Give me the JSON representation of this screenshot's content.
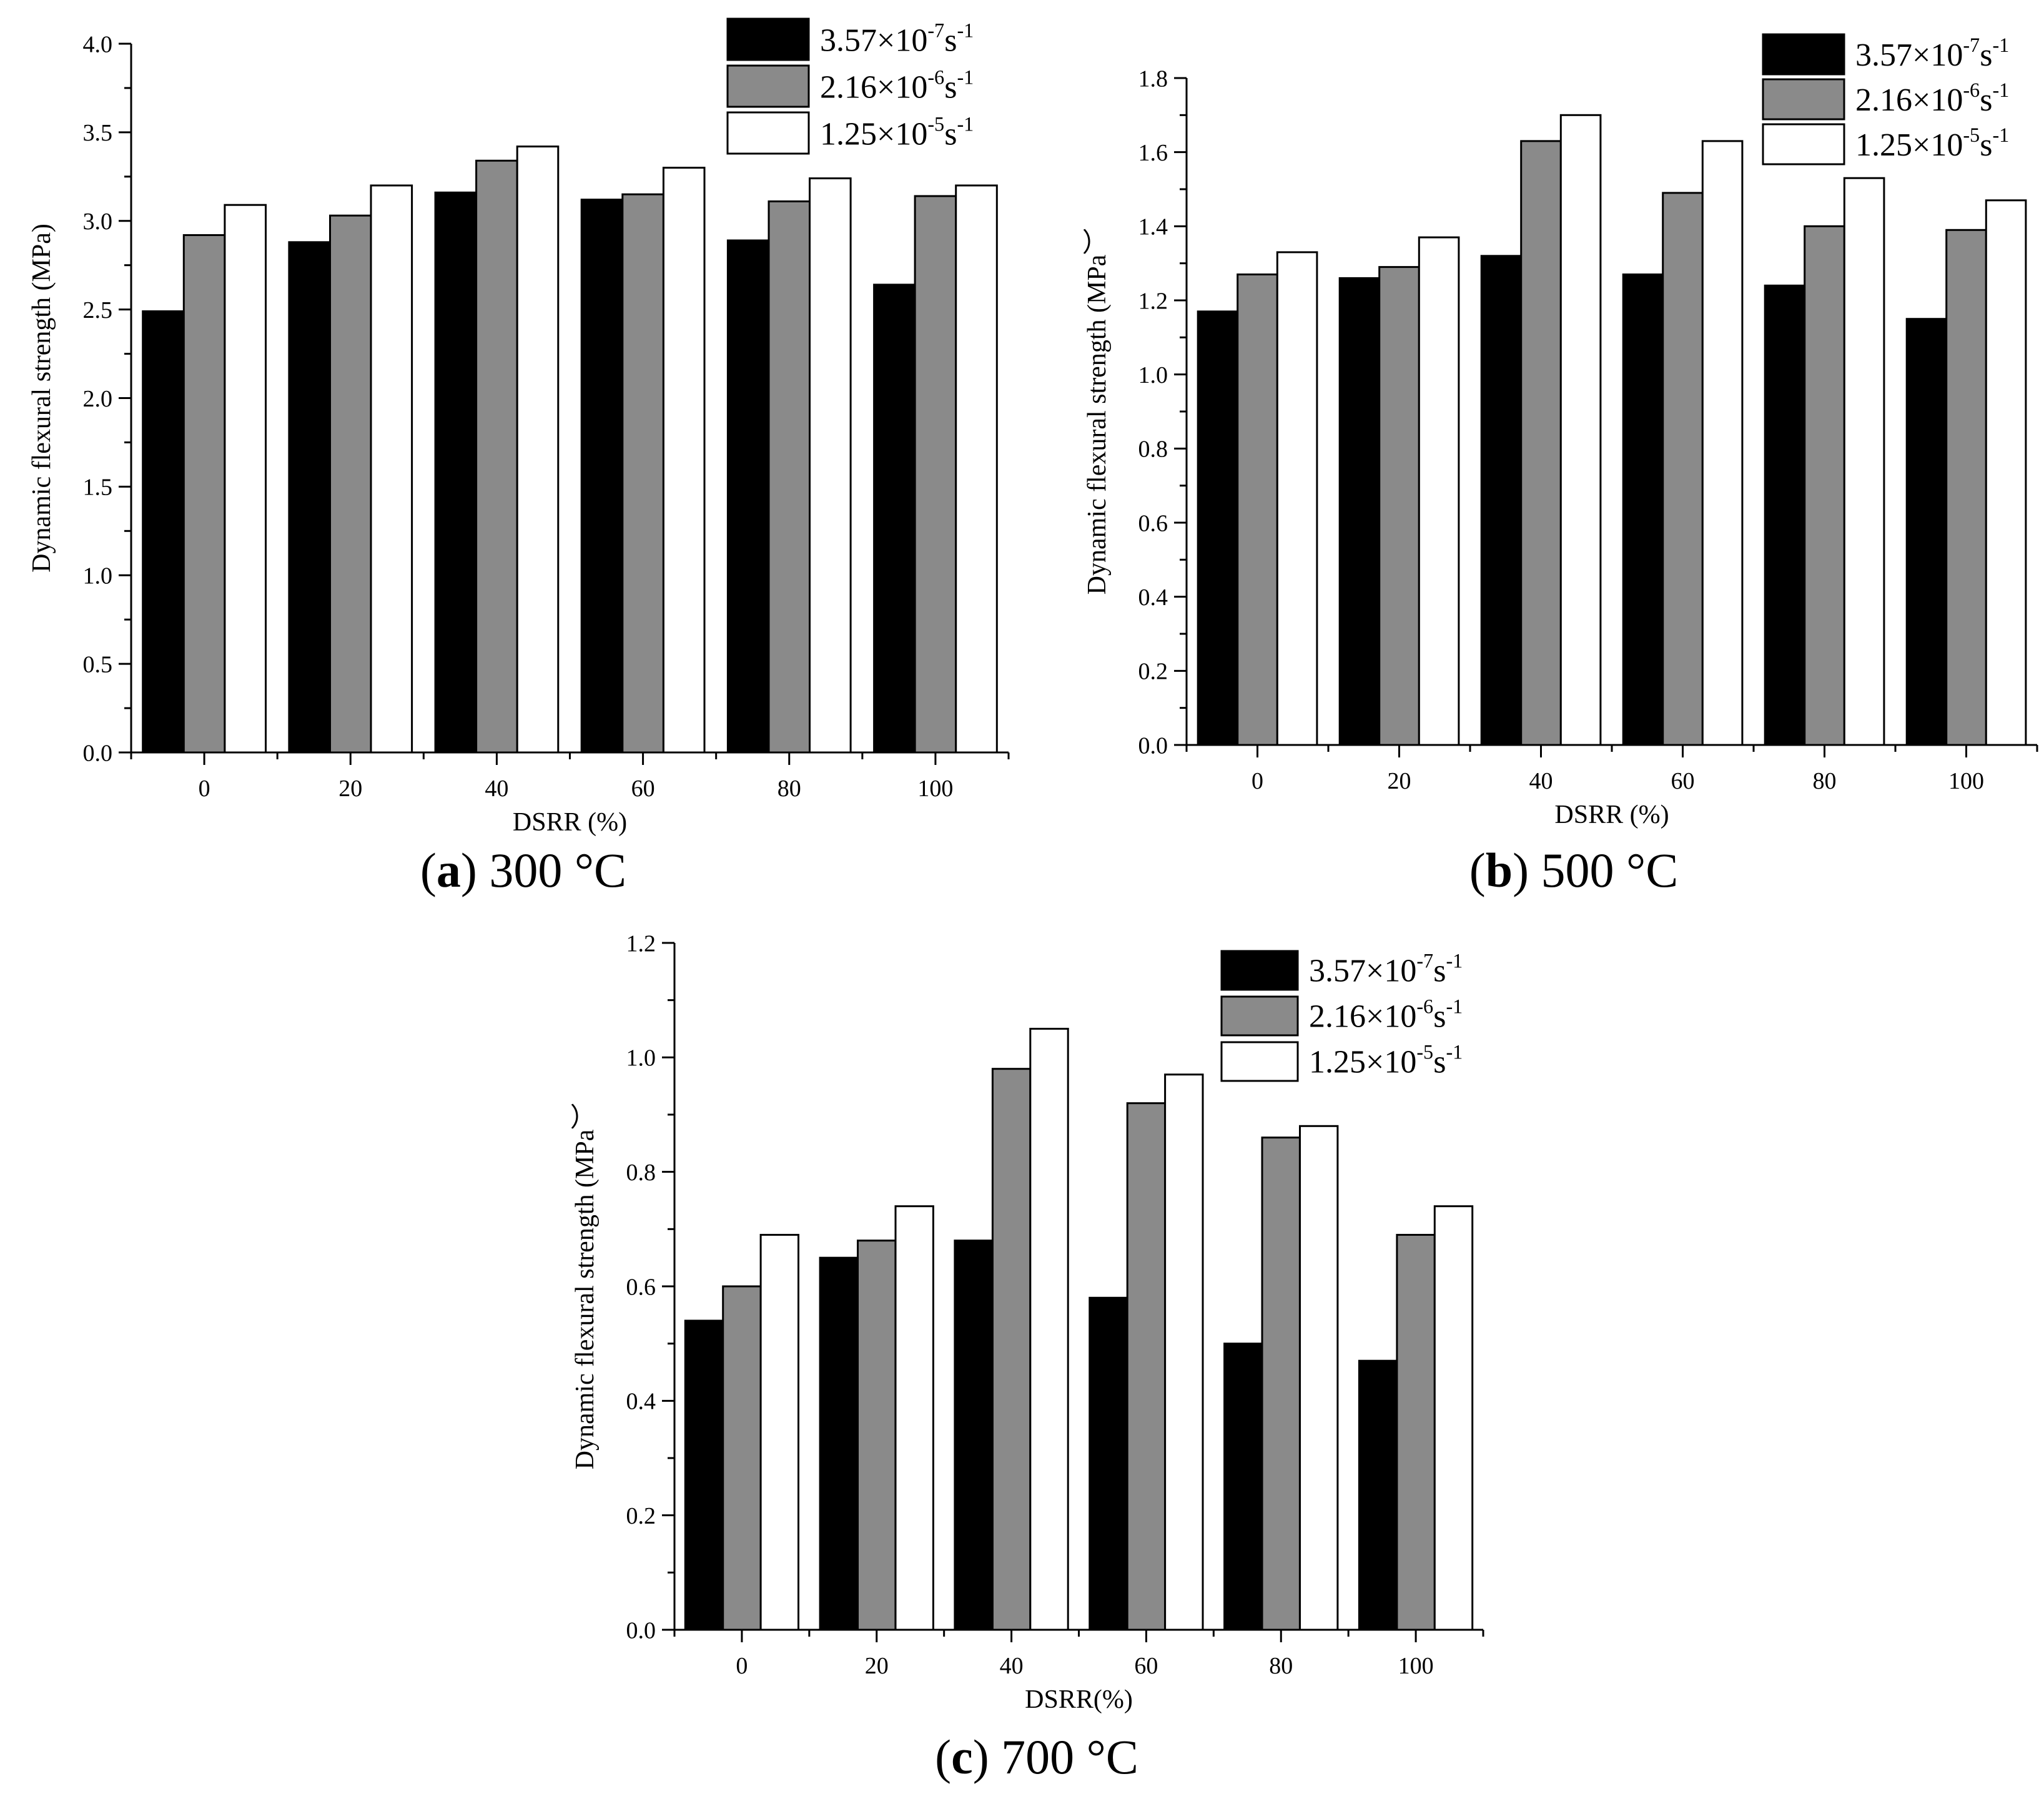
{
  "colors": {
    "series_0": "#000000",
    "series_1": "#8a8a8a",
    "series_2": "#ffffff",
    "axis": "#000000",
    "background": "#ffffff"
  },
  "chart_data": [
    {
      "type": "bar",
      "panel": "(a) 300 °C",
      "panel_letter": "a",
      "caption": "300 °C",
      "title": "",
      "xlabel": "DSRR (%)",
      "ylabel": "Dynamic flexural strength (MPa)",
      "categories": [
        "0",
        "20",
        "40",
        "60",
        "80",
        "100"
      ],
      "ylim": [
        0,
        4.0
      ],
      "yticks": [
        "0.0",
        "0.5",
        "1.0",
        "1.5",
        "2.0",
        "2.5",
        "3.0",
        "3.5",
        "4.0"
      ],
      "grid": false,
      "legend_position": "top-right",
      "series": [
        {
          "name": "3.57×10⁻⁷s⁻¹",
          "mantissa": "3.57×10",
          "exponent": "-7",
          "unit": "s",
          "unit_exponent": "-1",
          "values": [
            2.49,
            2.88,
            3.16,
            3.12,
            2.89,
            2.64
          ]
        },
        {
          "name": "2.16×10⁻⁶s⁻¹",
          "mantissa": "2.16×10",
          "exponent": "-6",
          "unit": "s",
          "unit_exponent": "-1",
          "values": [
            2.92,
            3.03,
            3.34,
            3.15,
            3.11,
            3.14
          ]
        },
        {
          "name": "1.25×10⁻⁵s⁻¹",
          "mantissa": "1.25×10",
          "exponent": "-5",
          "unit": "s",
          "unit_exponent": "-1",
          "values": [
            3.09,
            3.2,
            3.42,
            3.3,
            3.24,
            3.2
          ]
        }
      ]
    },
    {
      "type": "bar",
      "panel": "(b) 500 °C",
      "panel_letter": "b",
      "caption": "500 °C",
      "title": "",
      "xlabel": "DSRR (%)",
      "ylabel": "Dynamic flexural strength (MPa︶",
      "categories": [
        "0",
        "20",
        "40",
        "60",
        "80",
        "100"
      ],
      "ylim": [
        0,
        1.8
      ],
      "yticks": [
        "0.0",
        "0.2",
        "0.4",
        "0.6",
        "0.8",
        "1.0",
        "1.2",
        "1.4",
        "1.6",
        "1.8"
      ],
      "grid": false,
      "legend_position": "top-right",
      "series": [
        {
          "name": "3.57×10⁻⁷s⁻¹",
          "mantissa": "3.57×10",
          "exponent": "-7",
          "unit": "s",
          "unit_exponent": "-1",
          "values": [
            1.17,
            1.26,
            1.32,
            1.27,
            1.24,
            1.15
          ]
        },
        {
          "name": "2.16×10⁻⁶s⁻¹",
          "mantissa": "2.16×10",
          "exponent": "-6",
          "unit": "s",
          "unit_exponent": "-1",
          "values": [
            1.27,
            1.29,
            1.63,
            1.49,
            1.4,
            1.39
          ]
        },
        {
          "name": "1.25×10⁻⁵s⁻¹",
          "mantissa": "1.25×10",
          "exponent": "-5",
          "unit": "s",
          "unit_exponent": "-1",
          "values": [
            1.33,
            1.37,
            1.7,
            1.63,
            1.53,
            1.47
          ]
        }
      ]
    },
    {
      "type": "bar",
      "panel": "(c) 700 °C",
      "panel_letter": "c",
      "caption": "700 °C",
      "title": "",
      "xlabel": "DSRR(%)",
      "ylabel": "Dynamic flexural strength (MPa︶",
      "categories": [
        "0",
        "20",
        "40",
        "60",
        "80",
        "100"
      ],
      "ylim": [
        0,
        1.2
      ],
      "yticks": [
        "0.0",
        "0.2",
        "0.4",
        "0.6",
        "0.8",
        "1.0",
        "1.2"
      ],
      "grid": false,
      "legend_position": "top-right",
      "series": [
        {
          "name": "3.57×10⁻⁷s⁻¹",
          "mantissa": "3.57×10",
          "exponent": "-7",
          "unit": "s",
          "unit_exponent": "-1",
          "values": [
            0.54,
            0.65,
            0.68,
            0.58,
            0.5,
            0.47
          ]
        },
        {
          "name": "2.16×10⁻⁶s⁻¹",
          "mantissa": "2.16×10",
          "exponent": "-6",
          "unit": "s",
          "unit_exponent": "-1",
          "values": [
            0.6,
            0.68,
            0.98,
            0.92,
            0.86,
            0.69
          ]
        },
        {
          "name": "1.25×10⁻⁵s⁻¹",
          "mantissa": "1.25×10",
          "exponent": "-5",
          "unit": "s",
          "unit_exponent": "-1",
          "values": [
            0.69,
            0.74,
            1.05,
            0.97,
            0.88,
            0.74
          ]
        }
      ]
    }
  ]
}
